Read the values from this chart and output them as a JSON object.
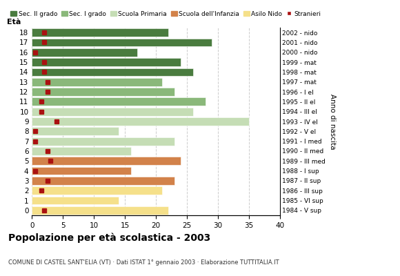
{
  "ages": [
    18,
    17,
    16,
    15,
    14,
    13,
    12,
    11,
    10,
    9,
    8,
    7,
    6,
    5,
    4,
    3,
    2,
    1,
    0
  ],
  "years": [
    "1984 - V sup",
    "1985 - VI sup",
    "1986 - III sup",
    "1987 - II sup",
    "1988 - I sup",
    "1989 - III med",
    "1990 - II med",
    "1991 - I med",
    "1992 - V el",
    "1993 - IV el",
    "1994 - III el",
    "1995 - II el",
    "1996 - I el",
    "1997 - mat",
    "1998 - mat",
    "1999 - mat",
    "2000 - nido",
    "2001 - nido",
    "2002 - nido"
  ],
  "values": [
    22,
    29,
    17,
    24,
    26,
    21,
    23,
    28,
    26,
    35,
    14,
    23,
    16,
    24,
    16,
    23,
    21,
    14,
    22
  ],
  "stranieri": [
    2,
    2,
    0.5,
    2,
    2,
    2.5,
    2.5,
    1.5,
    1.5,
    4,
    0.5,
    0.5,
    2.5,
    3,
    0.5,
    2.5,
    1.5,
    0,
    2
  ],
  "categories": {
    "sec2": [
      14,
      15,
      16,
      17,
      18
    ],
    "sec1": [
      11,
      12,
      13
    ],
    "primaria": [
      6,
      7,
      8,
      9,
      10
    ],
    "infanzia": [
      3,
      4,
      5
    ],
    "nido": [
      0,
      1,
      2
    ]
  },
  "colors": {
    "sec2": "#4a7c3f",
    "sec1": "#8ab87a",
    "primaria": "#c5ddb5",
    "infanzia": "#d2824a",
    "nido": "#f5e08a",
    "stranieri": "#aa1111"
  },
  "legend_labels": [
    "Sec. II grado",
    "Sec. I grado",
    "Scuola Primaria",
    "Scuola dell'Infanzia",
    "Asilo Nido",
    "Stranieri"
  ],
  "xlabel_left": "Età",
  "xlabel_right": "Anno di nascita",
  "title": "Popolazione per età scolastica - 2003",
  "subtitle": "COMUNE DI CASTEL SANT'ELIA (VT) · Dati ISTAT 1° gennaio 2003 · Elaborazione TUTTITALIA.IT",
  "xlim": [
    0,
    40
  ],
  "xticks": [
    0,
    5,
    10,
    15,
    20,
    25,
    30,
    35,
    40
  ],
  "grid_color": "#cccccc"
}
